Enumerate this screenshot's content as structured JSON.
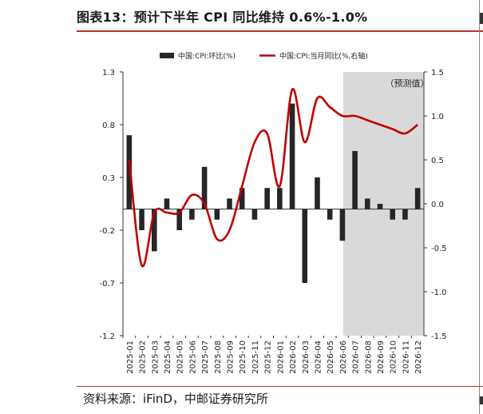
{
  "title": "图表13：预计下半年 CPI 同比维持 0.6%-1.0%",
  "source": "资料来源：iFinD，中邮证券研究所",
  "chart_data": {
    "type": "bar+line",
    "categories": [
      "2025-01",
      "2025-02",
      "2025-03",
      "2025-04",
      "2025-05",
      "2025-06",
      "2025-07",
      "2025-08",
      "2025-09",
      "2025-10",
      "2025-11",
      "2025-12",
      "2026-01",
      "2026-02",
      "2026-03",
      "2026-04",
      "2026-05",
      "2026-06",
      "2026-07",
      "2026-08",
      "2026-09",
      "2026-10",
      "2026-11",
      "2026-12"
    ],
    "left_axis": {
      "ylim": [
        -1.2,
        1.3
      ],
      "ticks": [
        "1.3",
        "0.8",
        "0.3",
        "-0.2",
        "-0.7",
        "-1.2"
      ]
    },
    "right_axis": {
      "ylim": [
        -1.5,
        1.5
      ],
      "ticks": [
        "1.5",
        "1.0",
        "0.5",
        "0.0",
        "-0.5",
        "-1.0",
        "-1.5"
      ]
    },
    "forecast_label": "（预测值）",
    "forecast_start_index": 18,
    "colors": {
      "bar": "#262626",
      "line": "#c00000",
      "shade": "#d9d9d9"
    },
    "legend": {
      "placement": "top-center"
    },
    "series": [
      {
        "name": "中国:CPI:环比(%)",
        "type": "bar",
        "axis": "left",
        "values": [
          0.7,
          -0.2,
          -0.4,
          0.1,
          -0.2,
          -0.1,
          0.4,
          -0.1,
          0.1,
          0.2,
          -0.1,
          0.2,
          0.2,
          1.0,
          -0.7,
          0.3,
          -0.1,
          -0.3,
          0.55,
          0.1,
          0.05,
          -0.1,
          -0.1,
          0.2
        ]
      },
      {
        "name": "中国:CPI:当月同比(%,右轴)",
        "type": "line",
        "axis": "right",
        "values": [
          0.5,
          -0.7,
          -0.1,
          -0.1,
          -0.1,
          0.1,
          0.0,
          -0.4,
          -0.3,
          0.2,
          0.7,
          0.8,
          0.2,
          1.3,
          0.7,
          1.2,
          1.1,
          1.0,
          1.0,
          0.95,
          0.9,
          0.85,
          0.8,
          0.9
        ]
      }
    ]
  }
}
